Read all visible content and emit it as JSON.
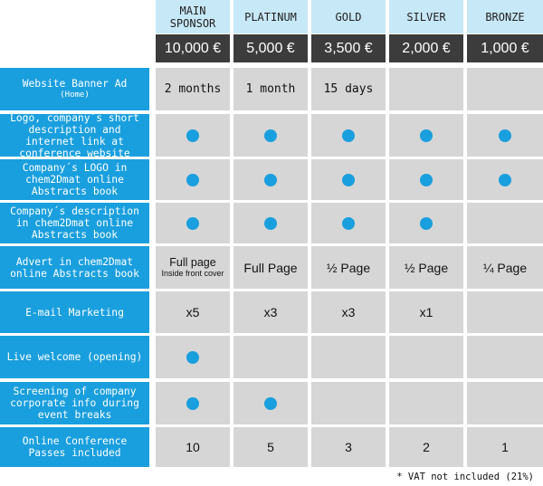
{
  "tiers": [
    "MAIN SPONSOR",
    "PLATINUM",
    "GOLD",
    "SILVER",
    "BRONZE"
  ],
  "prices": [
    "10,000 €",
    "5,000 €",
    "3,500 €",
    "2,000 €",
    "1,000 €"
  ],
  "rows": [
    {
      "label": "Website Banner Ad",
      "sublabel": "(Home)",
      "values": [
        "2 months",
        "1 month",
        "15 days",
        "",
        ""
      ]
    },
    {
      "label": "Logo, company´s short description and internet link at conference website",
      "values": [
        "dot",
        "dot",
        "dot",
        "dot",
        "dot"
      ]
    },
    {
      "label": "Company´s LOGO in chem2Dmat online Abstracts book",
      "values": [
        "dot",
        "dot",
        "dot",
        "dot",
        "dot"
      ]
    },
    {
      "label": "Company´s description in chem2Dmat online Abstracts book",
      "values": [
        "dot",
        "dot",
        "dot",
        "dot",
        ""
      ]
    },
    {
      "label": "Advert in chem2Dmat online Abstracts book",
      "values": [
        "Full page",
        "Full Page",
        "½ Page",
        "½ Page",
        "¼ Page"
      ],
      "value_notes": [
        "Inside front cover",
        "",
        "",
        "",
        ""
      ]
    },
    {
      "label": "E-mail Marketing",
      "values": [
        "x5",
        "x3",
        "x3",
        "x1",
        ""
      ]
    },
    {
      "label": "Live welcome (opening)",
      "values": [
        "dot",
        "",
        "",
        "",
        ""
      ]
    },
    {
      "label": "Screening of company corporate info during event breaks",
      "values": [
        "dot",
        "dot",
        "",
        "",
        ""
      ]
    },
    {
      "label": "Online Conference Passes included",
      "values": [
        "10",
        "5",
        "3",
        "2",
        "1"
      ]
    }
  ],
  "footnote": "* VAT not included (21%)",
  "colors": {
    "accent": "#1a9fde",
    "header": "#c7e8f7",
    "price": "#3c3c3c",
    "cell": "#d6d6d6"
  }
}
